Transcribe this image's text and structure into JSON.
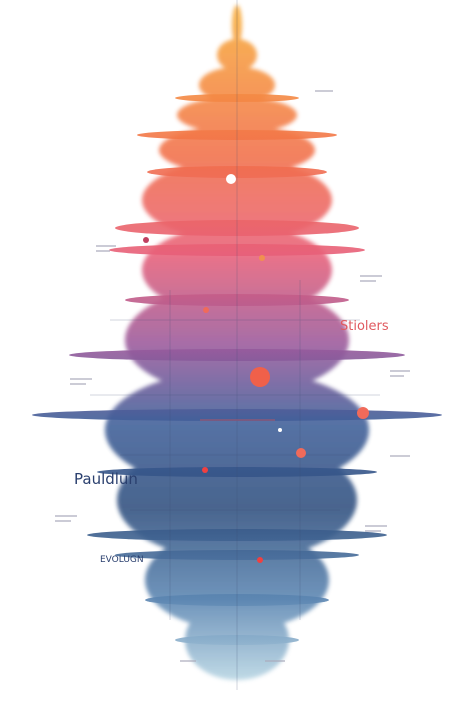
{
  "labels": {
    "left_title": "Pauldlun",
    "right_title": "Stiolers",
    "left_small": "EVOLUGN"
  }
}
